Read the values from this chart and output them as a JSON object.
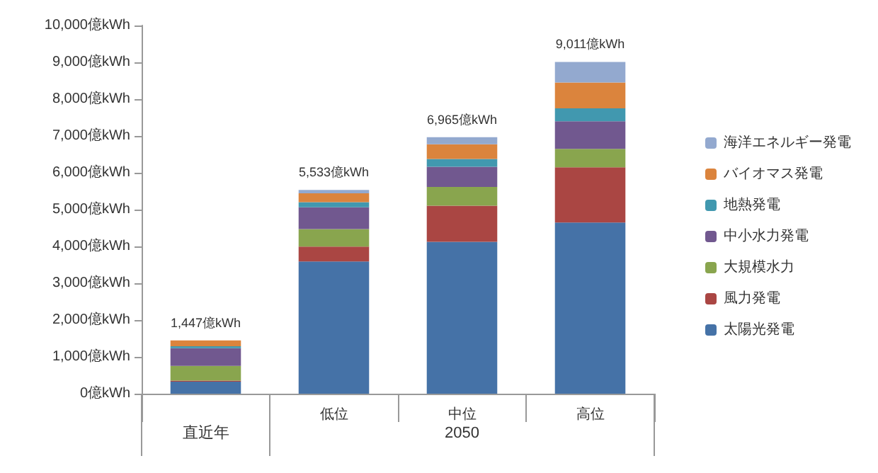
{
  "chart_data": {
    "type": "bar",
    "stacked": true,
    "categories": [
      null,
      "低位",
      "中位",
      "高位"
    ],
    "annotations": [
      "直近年",
      "2050"
    ],
    "series": [
      {
        "name": "太陽光発電",
        "color": "#4572a7",
        "values": [
          327,
          3593,
          4125,
          4651
        ]
      },
      {
        "name": "風力発電",
        "color": "#aa4643",
        "values": [
          30,
          400,
          980,
          1500
        ]
      },
      {
        "name": "大規模水力",
        "color": "#89a54e",
        "values": [
          400,
          480,
          510,
          500
        ]
      },
      {
        "name": "中小水力発電",
        "color": "#71588f",
        "values": [
          480,
          590,
          550,
          750
        ]
      },
      {
        "name": "地熱発電",
        "color": "#4198af",
        "values": [
          50,
          140,
          210,
          350
        ]
      },
      {
        "name": "バイオマス発電",
        "color": "#db843d",
        "values": [
          160,
          240,
          400,
          700
        ]
      },
      {
        "name": "海洋エネルギー発電",
        "color": "#93a9cf",
        "values": [
          0,
          90,
          190,
          560
        ]
      }
    ],
    "totals": [
      "1,447億kWh",
      "5,533億kWh",
      "6,965億kWh",
      "9,011億kWh"
    ],
    "ylim": [
      0,
      10000
    ],
    "yticks": [
      {
        "value": 0,
        "label": "0億kWh"
      },
      {
        "value": 1000,
        "label": "1,000億kWh"
      },
      {
        "value": 2000,
        "label": "2,000億kWh"
      },
      {
        "value": 3000,
        "label": "3,000億kWh"
      },
      {
        "value": 4000,
        "label": "4,000億kWh"
      },
      {
        "value": 5000,
        "label": "5,000億kWh"
      },
      {
        "value": 6000,
        "label": "6,000億kWh"
      },
      {
        "value": 7000,
        "label": "7,000億kWh"
      },
      {
        "value": 8000,
        "label": "8,000億kWh"
      },
      {
        "value": 9000,
        "label": "9,000億kWh"
      },
      {
        "value": 10000,
        "label": "10,000億kWh"
      }
    ],
    "grid": false,
    "legend": "right"
  }
}
